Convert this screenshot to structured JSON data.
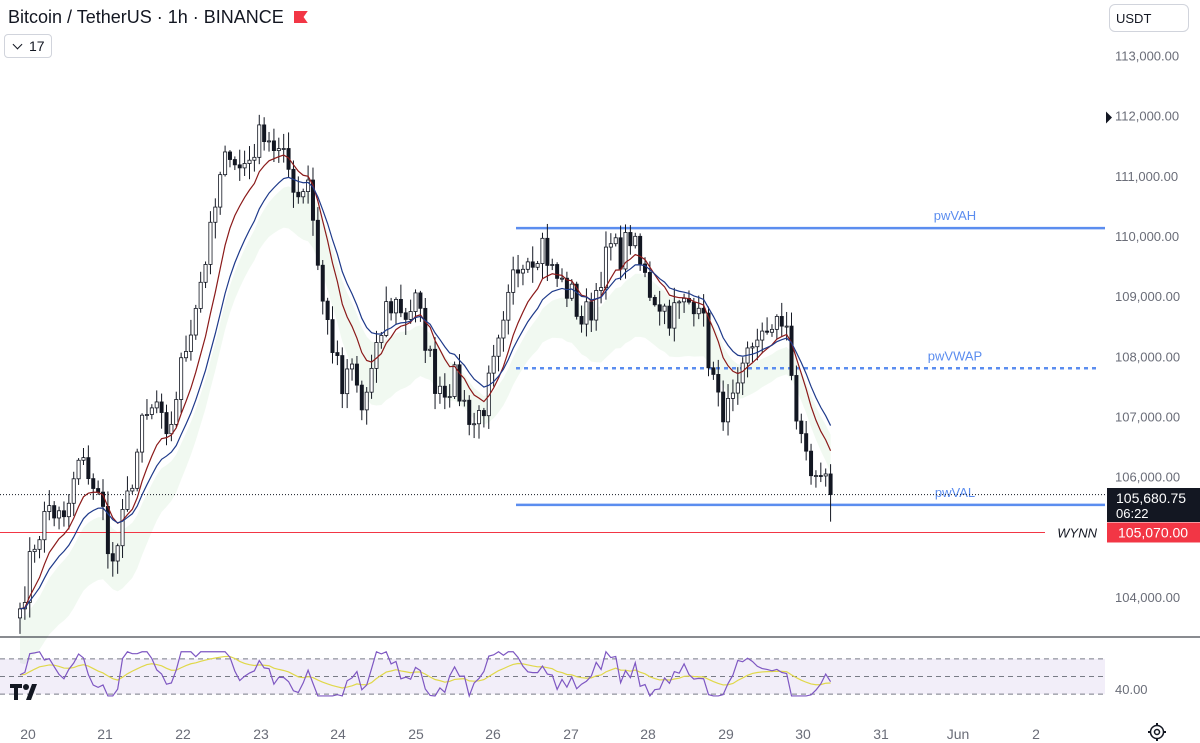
{
  "header": {
    "title": "Bitcoin / TetherUS · 1h · BINANCE"
  },
  "indicators_toggle": {
    "count": "17"
  },
  "currency_button": {
    "label": "USDT"
  },
  "chart_data": {
    "type": "candlestick",
    "symbol": "Bitcoin / TetherUS",
    "timeframe": "1h",
    "exchange": "BINANCE",
    "ylim": [
      103400,
      113400
    ],
    "price_ticks": [
      "113,000.00",
      "112,000.00",
      "111,000.00",
      "110,000.00",
      "109,000.00",
      "108,000.00",
      "107,000.00",
      "106,000.00",
      "104,000.00"
    ],
    "x_ticks": [
      "20",
      "21",
      "22",
      "23",
      "24",
      "25",
      "26",
      "27",
      "28",
      "29",
      "30",
      "31",
      "Jun",
      "2"
    ],
    "last_price": "105,680.75",
    "countdown": "06:22",
    "alert_level": {
      "label": "WYNN",
      "price_label": "105,070.00",
      "value": 105070
    },
    "levels": [
      {
        "name": "pwVAH",
        "value": 110130,
        "style": "solid",
        "color": "#5b8def"
      },
      {
        "name": "pwVWAP",
        "value": 107800,
        "style": "dotted",
        "color": "#5b8def"
      },
      {
        "name": "pwVAL",
        "value": 105530,
        "style": "solid",
        "color": "#5b8def"
      }
    ],
    "path": [
      [
        0,
        103800
      ],
      [
        3,
        104900
      ],
      [
        6,
        105500
      ],
      [
        9,
        105200
      ],
      [
        12,
        106200
      ],
      [
        14,
        106100
      ],
      [
        17,
        105400
      ],
      [
        19,
        104500
      ],
      [
        22,
        105600
      ],
      [
        25,
        106800
      ],
      [
        28,
        107200
      ],
      [
        30,
        106500
      ],
      [
        33,
        107800
      ],
      [
        36,
        108900
      ],
      [
        39,
        110000
      ],
      [
        41,
        110900
      ],
      [
        43,
        111500
      ],
      [
        45,
        111100
      ],
      [
        47,
        111300
      ],
      [
        50,
        111800
      ],
      [
        52,
        111500
      ],
      [
        55,
        111100
      ],
      [
        57,
        110700
      ],
      [
        59,
        111000
      ],
      [
        61,
        109600
      ],
      [
        62,
        108900
      ],
      [
        64,
        108200
      ],
      [
        66,
        107400
      ],
      [
        68,
        107800
      ],
      [
        70,
        107100
      ],
      [
        73,
        108000
      ],
      [
        75,
        108800
      ],
      [
        77,
        108900
      ],
      [
        79,
        108700
      ],
      [
        81,
        108900
      ],
      [
        83,
        108300
      ],
      [
        85,
        107600
      ],
      [
        87,
        107500
      ],
      [
        89,
        107600
      ],
      [
        91,
        107200
      ],
      [
        93,
        106900
      ],
      [
        95,
        107200
      ],
      [
        97,
        107800
      ],
      [
        99,
        108400
      ],
      [
        101,
        109300
      ],
      [
        103,
        109700
      ],
      [
        105,
        109700
      ],
      [
        107,
        109900
      ],
      [
        109,
        109400
      ],
      [
        111,
        109200
      ],
      [
        113,
        109000
      ],
      [
        115,
        108600
      ],
      [
        117,
        108800
      ],
      [
        119,
        109400
      ],
      [
        121,
        109800
      ],
      [
        123,
        109700
      ],
      [
        125,
        110000
      ],
      [
        127,
        109500
      ],
      [
        129,
        109100
      ],
      [
        131,
        108900
      ],
      [
        133,
        108700
      ],
      [
        135,
        108800
      ],
      [
        137,
        108900
      ],
      [
        139,
        109000
      ],
      [
        141,
        108000
      ],
      [
        143,
        107200
      ],
      [
        145,
        107100
      ],
      [
        147,
        107300
      ],
      [
        149,
        108000
      ],
      [
        151,
        108400
      ],
      [
        153,
        108200
      ],
      [
        155,
        108800
      ],
      [
        157,
        108300
      ],
      [
        159,
        107000
      ],
      [
        161,
        106300
      ],
      [
        163,
        105900
      ],
      [
        165,
        106200
      ],
      [
        166,
        105700
      ]
    ],
    "rsi": {
      "label": "40.00",
      "upper": 70,
      "mid": 50,
      "lower": 30
    }
  }
}
